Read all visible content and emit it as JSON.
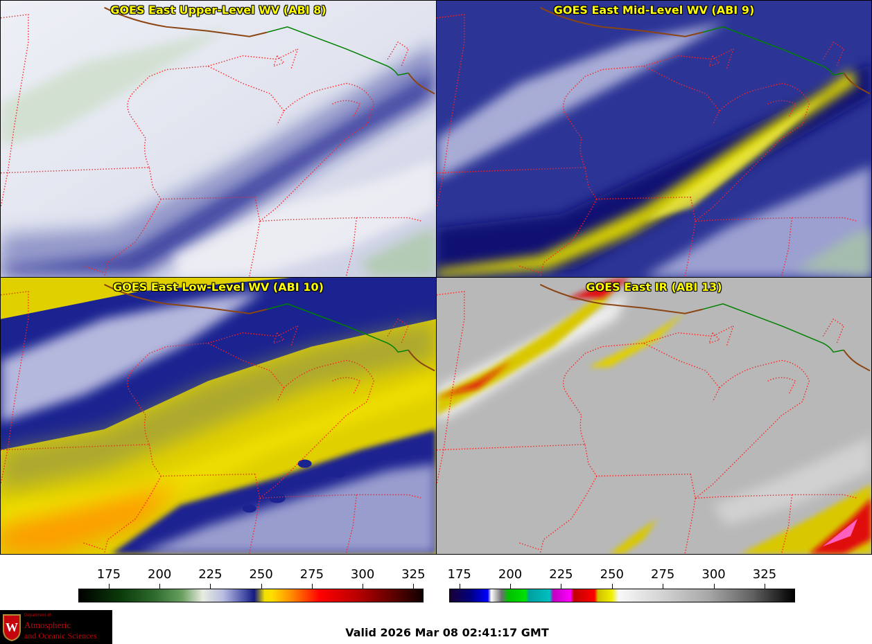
{
  "panels": [
    {
      "title": "GOES East Upper-Level WV (ABI 8)",
      "theme": "upper"
    },
    {
      "title": "GOES East Mid-Level WV (ABI 9)",
      "theme": "mid"
    },
    {
      "title": "GOES East Low-Level WV (ABI 10)",
      "theme": "low"
    },
    {
      "title": "GOES East IR (ABI 13)",
      "theme": "ir"
    }
  ],
  "colorbars": {
    "wv": {
      "ticks": [
        "175",
        "200",
        "225",
        "250",
        "275",
        "300",
        "325"
      ],
      "tick_values": [
        175,
        200,
        225,
        250,
        275,
        300,
        325
      ],
      "range": [
        160,
        330
      ]
    },
    "ir": {
      "ticks": [
        "175",
        "200",
        "225",
        "250",
        "275",
        "300",
        "325"
      ],
      "tick_values": [
        175,
        200,
        225,
        250,
        275,
        300,
        325
      ],
      "range": [
        170,
        340
      ]
    }
  },
  "logo": {
    "dept": "Department of",
    "line1": "Atmospheric",
    "line2": "and Oceanic Sciences"
  },
  "valid_time": "Valid 2026 Mar 08 02:41:17 GMT",
  "colors": {
    "border_state": "#ff2020",
    "border_country": "#008000",
    "coast": "#8b4513",
    "title": "#ffff00"
  }
}
